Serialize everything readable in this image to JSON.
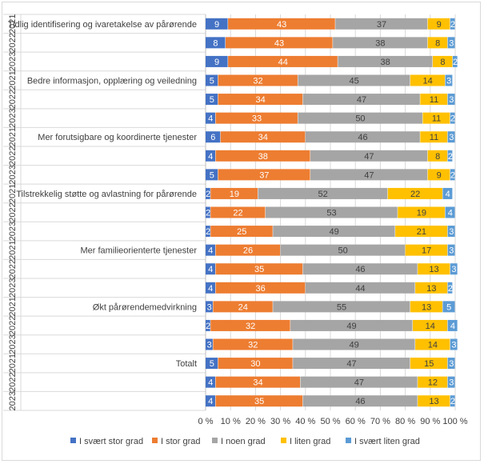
{
  "chart_data": {
    "type": "bar",
    "orientation": "horizontal",
    "stacked": "percent",
    "title": "",
    "xlabel": "",
    "ylabel": "",
    "xlim": [
      0,
      100
    ],
    "x_ticks": [
      "0 %",
      "10 %",
      "20 %",
      "30 %",
      "40 %",
      "50 %",
      "60 %",
      "70 %",
      "80 %",
      "90 %",
      "100 %"
    ],
    "legend_position": "bottom",
    "grid": true,
    "series": [
      {
        "name": "I svært stor grad",
        "color": "#4472c4"
      },
      {
        "name": "I stor grad",
        "color": "#ed7d31"
      },
      {
        "name": "I noen grad",
        "color": "#a5a5a5"
      },
      {
        "name": "I liten grad",
        "color": "#ffc000"
      },
      {
        "name": "I svært liten grad",
        "color": "#5b9bd5"
      }
    ],
    "groups": [
      {
        "label": "Tidlig identifisering og ivaretakelse av pårørende",
        "rows": [
          {
            "year": "2021",
            "values": [
              9,
              43,
              37,
              9,
              2
            ]
          },
          {
            "year": "2022",
            "values": [
              8,
              43,
              38,
              8,
              3
            ]
          },
          {
            "year": "2023",
            "values": [
              9,
              44,
              38,
              8,
              2
            ]
          }
        ]
      },
      {
        "label": "Bedre informasjon, opplæring og veiledning",
        "rows": [
          {
            "year": "2021",
            "values": [
              5,
              32,
              45,
              14,
              3
            ]
          },
          {
            "year": "2022",
            "values": [
              5,
              34,
              47,
              11,
              3
            ]
          },
          {
            "year": "2023",
            "values": [
              4,
              33,
              50,
              11,
              2
            ]
          }
        ]
      },
      {
        "label": "Mer forutsigbare og koordinerte tjenester",
        "rows": [
          {
            "year": "2021",
            "values": [
              6,
              34,
              46,
              11,
              3
            ]
          },
          {
            "year": "2022",
            "values": [
              4,
              38,
              47,
              8,
              2
            ]
          },
          {
            "year": "2023",
            "values": [
              5,
              37,
              47,
              9,
              2
            ]
          }
        ]
      },
      {
        "label": "Tilstrekkelig støtte og avlastning for pårørende",
        "rows": [
          {
            "year": "2021",
            "values": [
              2,
              19,
              52,
              22,
              4
            ]
          },
          {
            "year": "2022",
            "values": [
              2,
              22,
              53,
              19,
              4
            ]
          },
          {
            "year": "2023",
            "values": [
              2,
              25,
              49,
              21,
              3
            ]
          }
        ]
      },
      {
        "label": "Mer familieorienterte tjenester",
        "rows": [
          {
            "year": "2021",
            "values": [
              4,
              26,
              50,
              17,
              3
            ]
          },
          {
            "year": "2022",
            "values": [
              4,
              35,
              46,
              13,
              3
            ]
          },
          {
            "year": "2023",
            "values": [
              4,
              36,
              44,
              13,
              2
            ]
          }
        ]
      },
      {
        "label": "Økt pårørendemedvirkning",
        "rows": [
          {
            "year": "2021",
            "values": [
              3,
              24,
              55,
              13,
              5
            ]
          },
          {
            "year": "2022",
            "values": [
              2,
              32,
              49,
              14,
              4
            ]
          },
          {
            "year": "2023",
            "values": [
              3,
              32,
              49,
              14,
              3
            ]
          }
        ]
      },
      {
        "label": "Totalt",
        "rows": [
          {
            "year": "2021",
            "values": [
              5,
              30,
              47,
              15,
              3
            ]
          },
          {
            "year": "2022",
            "values": [
              4,
              34,
              47,
              12,
              3
            ]
          },
          {
            "year": "2023",
            "values": [
              4,
              35,
              46,
              13,
              2
            ]
          }
        ]
      }
    ]
  }
}
